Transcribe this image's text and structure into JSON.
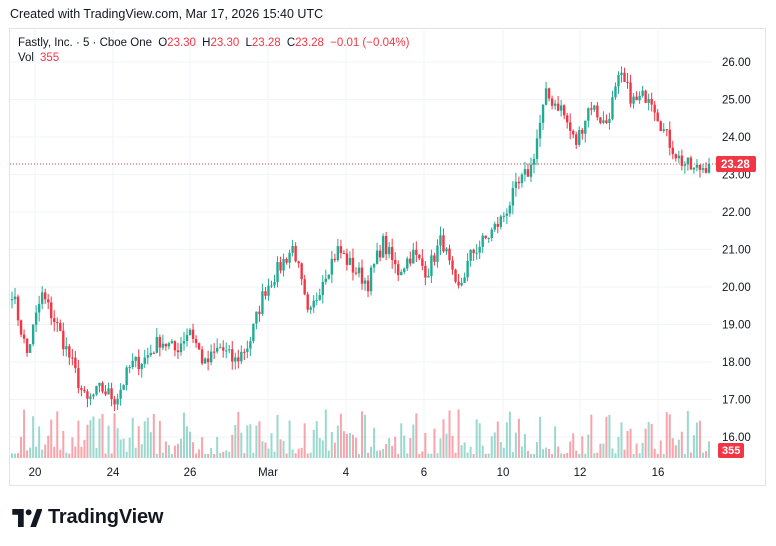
{
  "header": {
    "created_text": "Created with TradingView.com, Mar 17, 2026 15:40 UTC"
  },
  "legend": {
    "symbol": "Fastly, Inc. · 5 · Cboe One",
    "open_label": "O",
    "open": "23.30",
    "high_label": "H",
    "high": "23.30",
    "low_label": "L",
    "low": "23.28",
    "close_label": "C",
    "close": "23.28",
    "change": "−0.01 (−0.04%)",
    "vol_label": "Vol",
    "vol": "355"
  },
  "price_tag": "23.28",
  "vol_tag": "355",
  "brand": {
    "name": "TradingView"
  },
  "colors": {
    "up": "#22ab94",
    "down": "#f23645",
    "grid": "#f0f3fa",
    "text": "#131722"
  },
  "chart_data": {
    "type": "candlestick",
    "y_ticks": [
      "26.00",
      "25.00",
      "24.00",
      "23.00",
      "22.00",
      "21.00",
      "20.00",
      "19.00",
      "18.00",
      "17.00",
      "16.00"
    ],
    "ylim": [
      15.6,
      26.35
    ],
    "x_ticks": [
      "20",
      "24",
      "26",
      "Mar",
      "4",
      "6",
      "10",
      "12",
      "16"
    ],
    "last_price": 23.28,
    "last_volume": 355,
    "price_path": [
      {
        "d": "Feb 19",
        "p": 19.9
      },
      {
        "d": "Feb 19",
        "p": 18.2
      },
      {
        "d": "Feb 20",
        "p": 19.8
      },
      {
        "d": "Feb 20",
        "p": 19.0
      },
      {
        "d": "Feb 21",
        "p": 18.0
      },
      {
        "d": "Feb 21",
        "p": 16.9
      },
      {
        "d": "Feb 23",
        "p": 17.3
      },
      {
        "d": "Feb 24",
        "p": 17.0
      },
      {
        "d": "Feb 24",
        "p": 17.9
      },
      {
        "d": "Feb 25",
        "p": 18.1
      },
      {
        "d": "Feb 25",
        "p": 18.6
      },
      {
        "d": "Feb 26",
        "p": 18.3
      },
      {
        "d": "Feb 26",
        "p": 18.9
      },
      {
        "d": "Feb 27",
        "p": 17.9
      },
      {
        "d": "Feb 27",
        "p": 18.4
      },
      {
        "d": "Feb 28",
        "p": 18.0
      },
      {
        "d": "Mar 1",
        "p": 18.5
      },
      {
        "d": "Mar 1",
        "p": 19.9
      },
      {
        "d": "Mar 2",
        "p": 20.5
      },
      {
        "d": "Mar 2",
        "p": 21.1
      },
      {
        "d": "Mar 3",
        "p": 19.1
      },
      {
        "d": "Mar 3",
        "p": 20.3
      },
      {
        "d": "Mar 4",
        "p": 21.0
      },
      {
        "d": "Mar 4",
        "p": 20.5
      },
      {
        "d": "Mar 5",
        "p": 20.1
      },
      {
        "d": "Mar 5",
        "p": 21.2
      },
      {
        "d": "Mar 6",
        "p": 20.4
      },
      {
        "d": "Mar 6",
        "p": 20.9
      },
      {
        "d": "Mar 7",
        "p": 20.4
      },
      {
        "d": "Mar 8",
        "p": 21.3
      },
      {
        "d": "Mar 9",
        "p": 19.8
      },
      {
        "d": "Mar 9",
        "p": 20.9
      },
      {
        "d": "Mar 10",
        "p": 21.3
      },
      {
        "d": "Mar 10",
        "p": 21.8
      },
      {
        "d": "Mar 11",
        "p": 22.6
      },
      {
        "d": "Mar 11",
        "p": 23.2
      },
      {
        "d": "Mar 12",
        "p": 25.1
      },
      {
        "d": "Mar 12",
        "p": 24.8
      },
      {
        "d": "Mar 13",
        "p": 23.8
      },
      {
        "d": "Mar 13",
        "p": 24.9
      },
      {
        "d": "Mar 14",
        "p": 24.3
      },
      {
        "d": "Mar 14",
        "p": 25.6
      },
      {
        "d": "Mar 15",
        "p": 24.9
      },
      {
        "d": "Mar 15",
        "p": 25.2
      },
      {
        "d": "Mar 16",
        "p": 24.1
      },
      {
        "d": "Mar 16",
        "p": 23.4
      },
      {
        "d": "Mar 17",
        "p": 23.1
      },
      {
        "d": "Mar 17",
        "p": 23.28
      }
    ]
  }
}
